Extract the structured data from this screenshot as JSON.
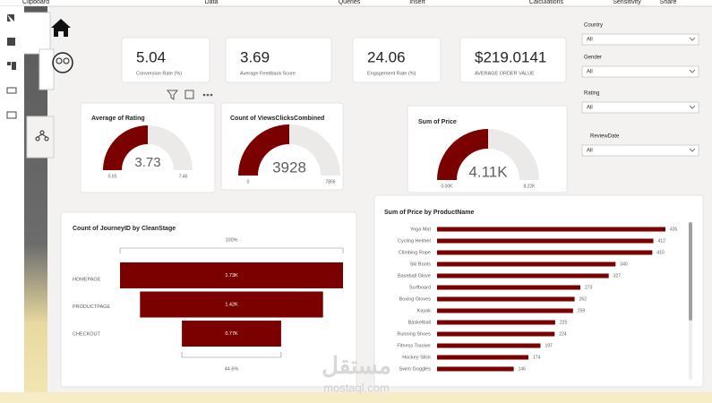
{
  "ribbon": [
    "Clipboard",
    "Data",
    "Queries",
    "Insert",
    "Calculations",
    "Sensitivity",
    "Share"
  ],
  "kpis": [
    {
      "value": "5.04",
      "label": "Conversion Rate (%)"
    },
    {
      "value": "3.69",
      "label": "Average Feedback Score"
    },
    {
      "value": "24.06",
      "label": "Engagement Rate (%)"
    },
    {
      "value": "$219.0141",
      "label": "AVERAGE ORDER VALUE"
    }
  ],
  "slicers": [
    {
      "label": "Country",
      "value": "All"
    },
    {
      "label": "Gender",
      "value": "All"
    },
    {
      "label": "Rating",
      "value": "All"
    },
    {
      "label": "ReviewDate",
      "value": "All"
    }
  ],
  "gauges": [
    {
      "title": "Average of Rating",
      "value": 3.73,
      "min": 0,
      "min_label": "0.00",
      "max": 7.46
    },
    {
      "title": "Count of ViewsClicksCombined",
      "value": 3928,
      "min": 0,
      "max": 7856
    },
    {
      "title": "Sum of Price",
      "value": 4110,
      "value_label": "4.11K",
      "min": 0,
      "min_label": "0.00K",
      "max": 8220,
      "max_label": "8.22K"
    }
  ],
  "funnel": {
    "title": "Count of JourneyID by CleanStage",
    "top_label": "100%",
    "bottom_label": "44.6%",
    "categories": [
      "HOMEPAGE",
      "PRODUCTPAGE",
      "CHECKOUT"
    ],
    "values": [
      1730,
      1420,
      770
    ],
    "value_labels": [
      "1.73K",
      "1.42K",
      "0.77K"
    ]
  },
  "bar_chart": {
    "type": "bar",
    "title": "Sum of Price by ProductName",
    "color": "#7b0000",
    "categories": [
      "Yoga Mat",
      "Cycling Helmet",
      "Climbing Rope",
      "Ski Boots",
      "Baseball Glove",
      "Surfboard",
      "Boxing Gloves",
      "Kayak",
      "Basketball",
      "Running Shoes",
      "Fitness Tracker",
      "Hockey Stick",
      "Swim Goggles"
    ],
    "values": [
      435,
      412,
      410,
      340,
      327,
      273,
      262,
      259,
      225,
      224,
      197,
      174,
      146
    ]
  }
}
